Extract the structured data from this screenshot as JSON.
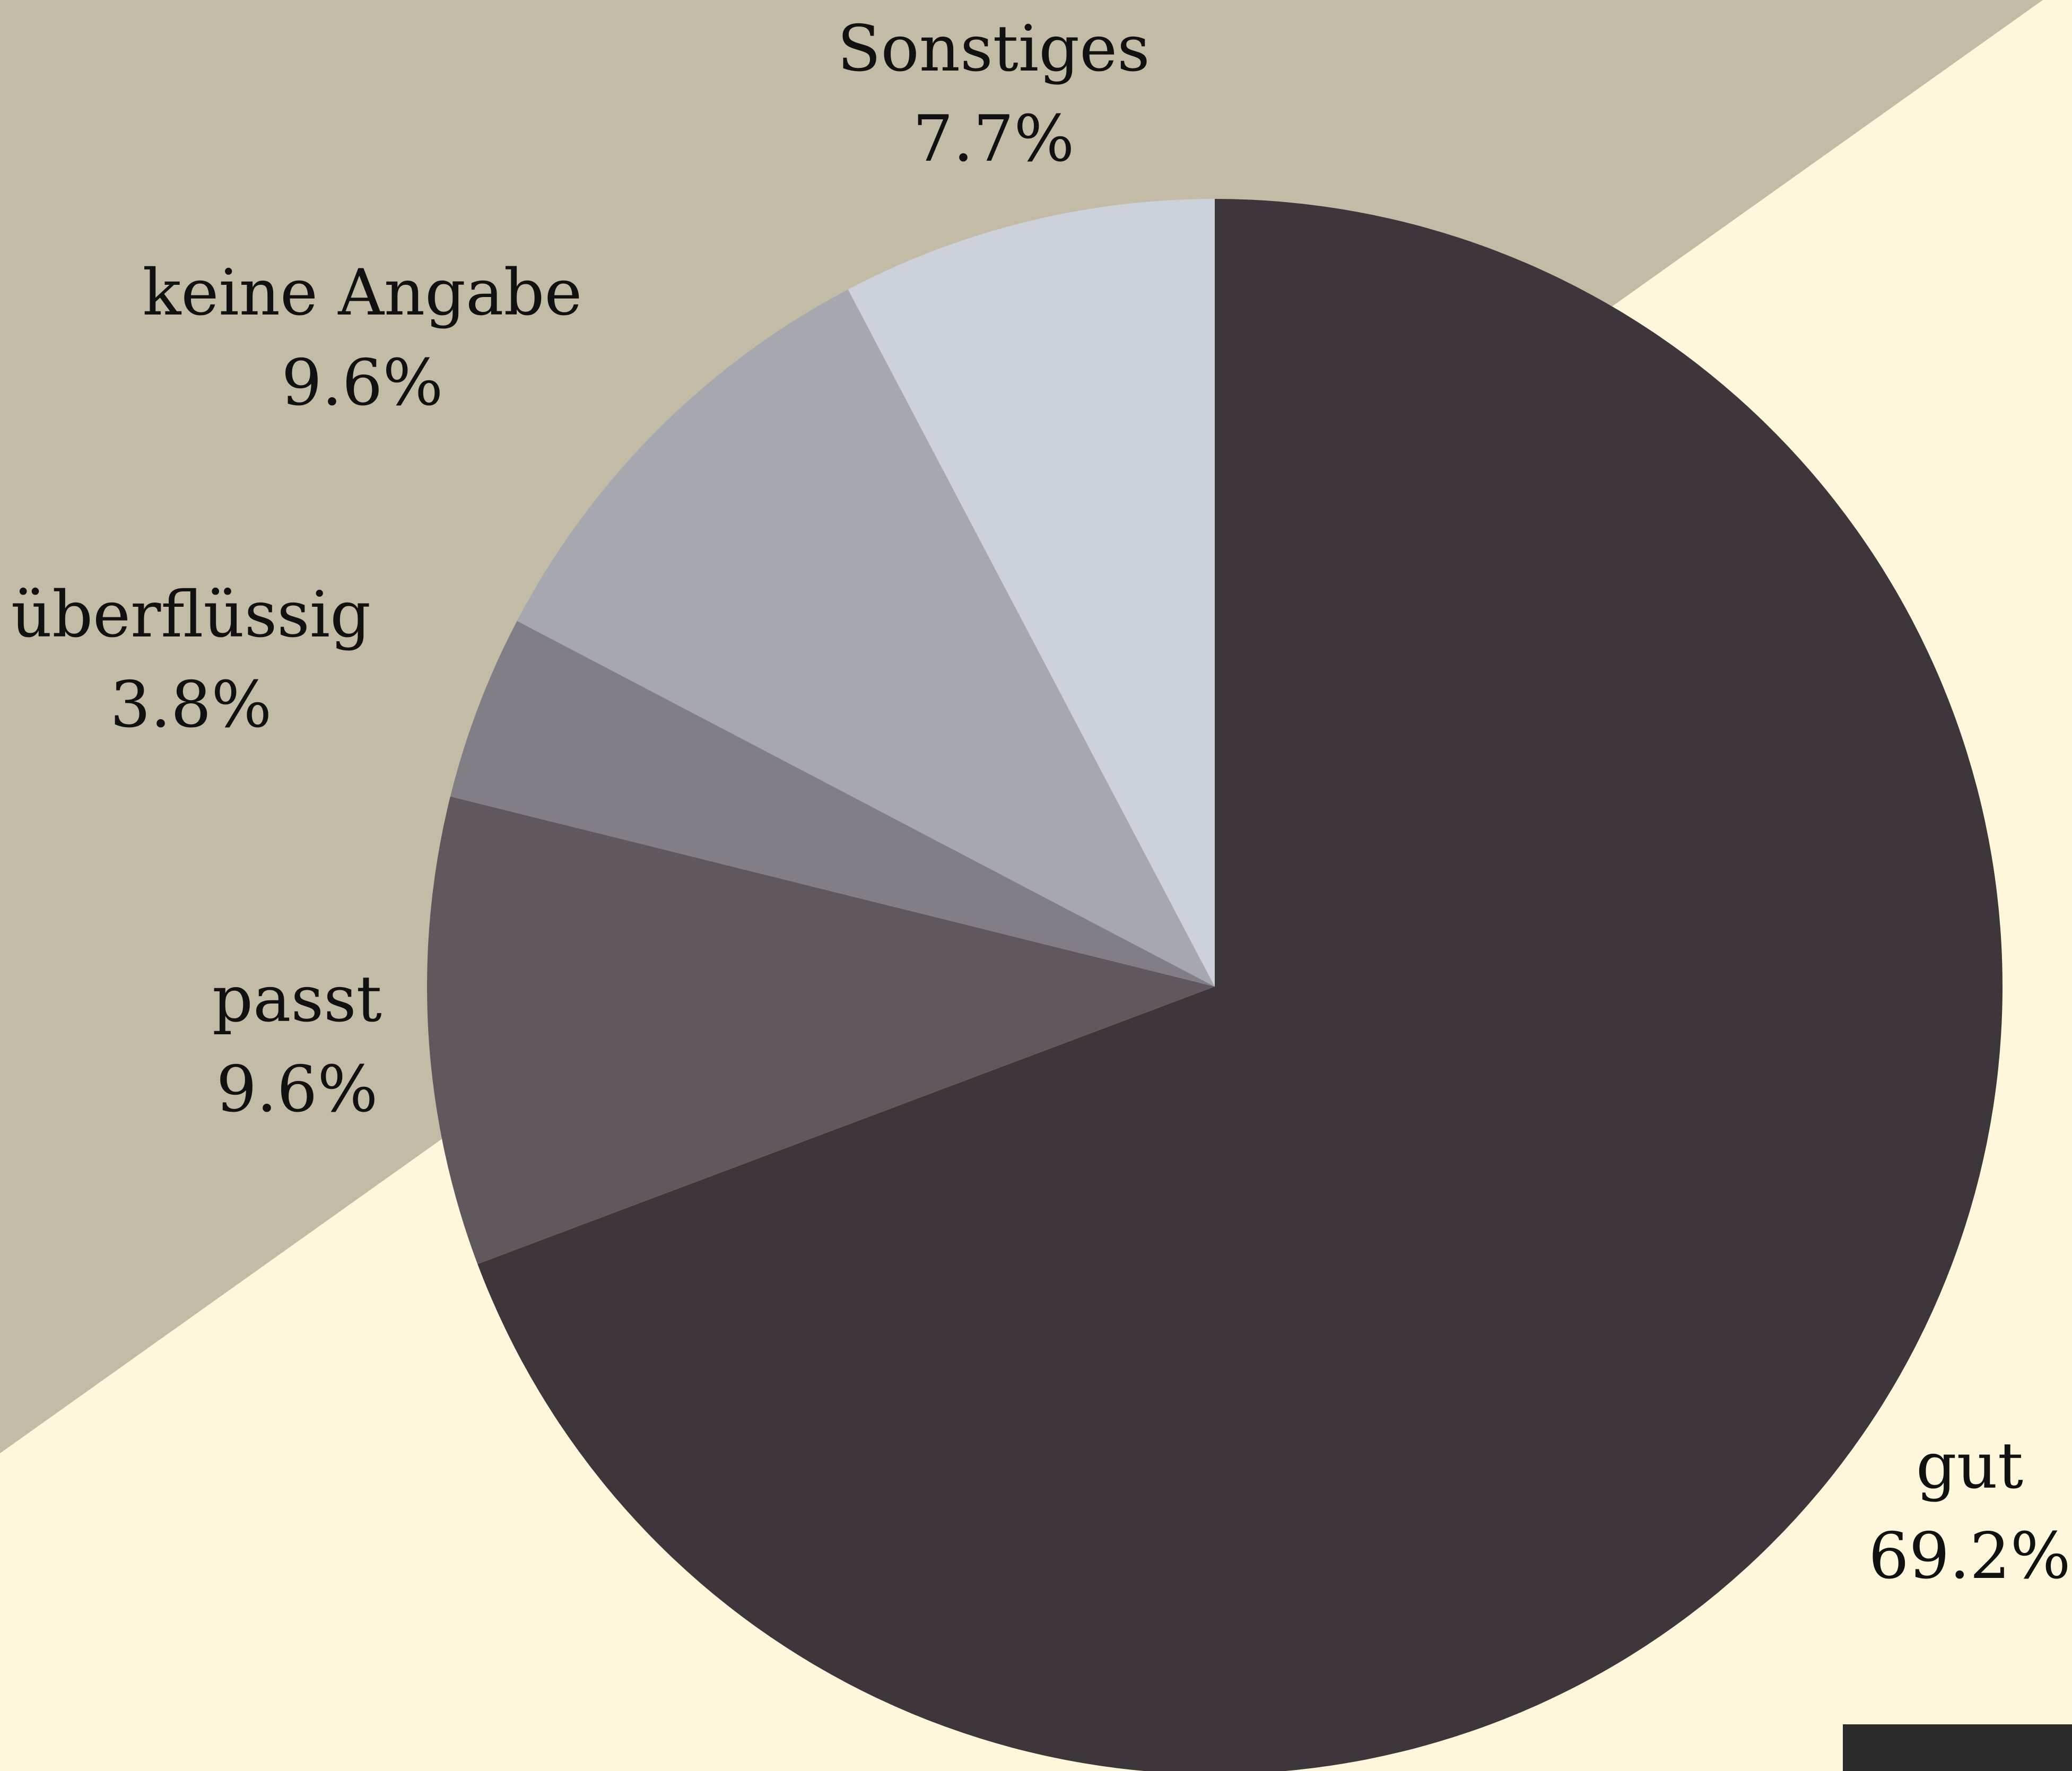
{
  "chart_data": {
    "type": "pie",
    "start": "top",
    "direction": "clockwise",
    "slices": [
      {
        "label": "gut",
        "value": 69.2,
        "display": "69.2%",
        "color": "#3d363a"
      },
      {
        "label": "passt",
        "value": 9.6,
        "display": "9.6%",
        "color": "#5f585d"
      },
      {
        "label": "überflüssig",
        "value": 3.8,
        "display": "3.8%",
        "color": "#827e85"
      },
      {
        "label": "keine Angabe",
        "value": 9.6,
        "display": "9.6%",
        "color": "#a7a7b0"
      },
      {
        "label": "Sonstiges",
        "value": 7.7,
        "display": "7.7%",
        "color": "#ccd1da"
      }
    ]
  },
  "colors": {
    "background_light": "#fef7dc",
    "background_band": "#c2bca7",
    "corner_block": "#2b2b2b"
  }
}
